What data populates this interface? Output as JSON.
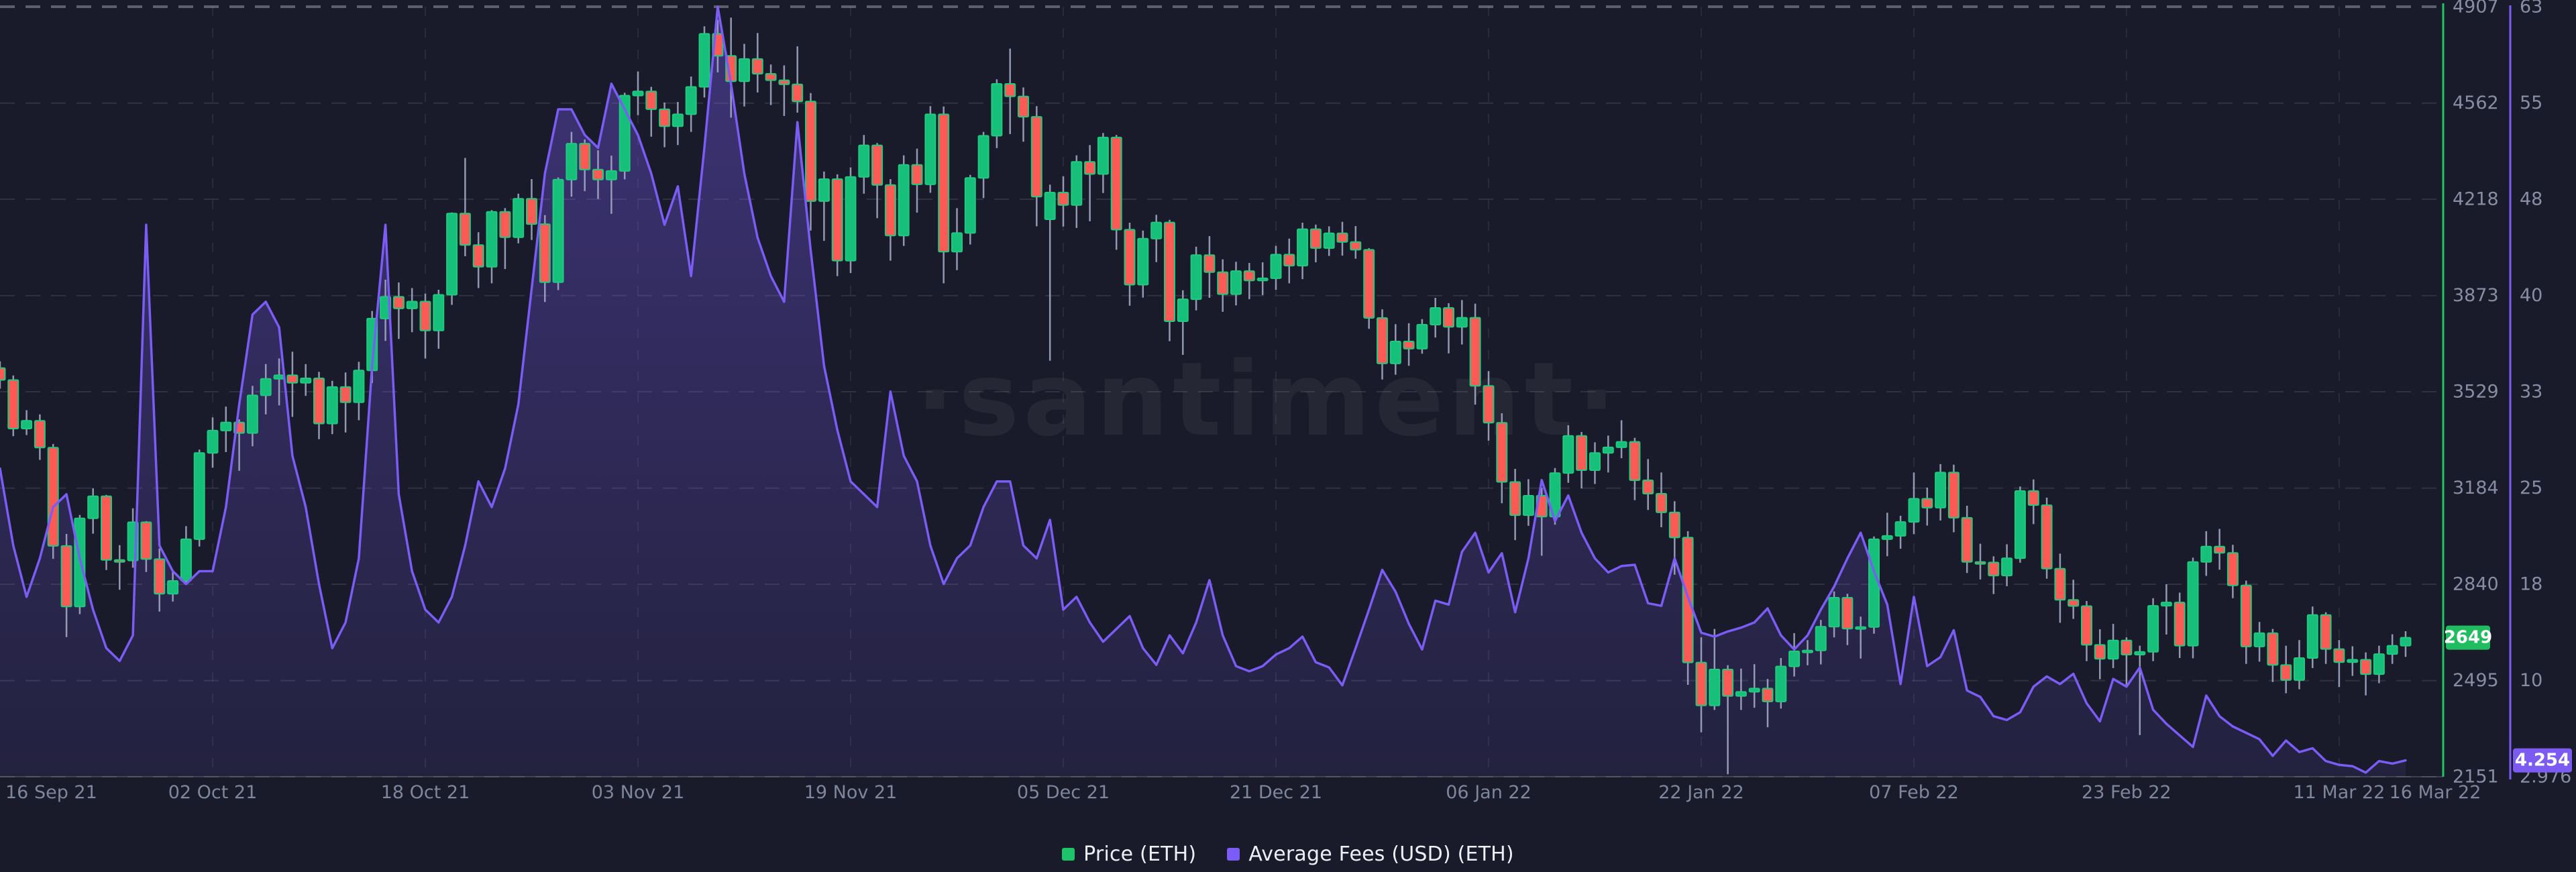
{
  "watermark": "·santiment·",
  "legend": {
    "items": [
      {
        "label": "Price (ETH)",
        "color": "#1ec468"
      },
      {
        "label": "Average Fees (USD) (ETH)",
        "color": "#7c5cf6"
      }
    ]
  },
  "chart_data": {
    "type": "candlestick+area",
    "interval": "1d",
    "start_date": "2021-09-16",
    "end_date": "2022-03-16",
    "x_axis": {
      "grid": true,
      "ticks": [
        {
          "label": "16 Sep 21",
          "day": 0
        },
        {
          "label": "02 Oct 21",
          "day": 16
        },
        {
          "label": "18 Oct 21",
          "day": 32
        },
        {
          "label": "03 Nov 21",
          "day": 48
        },
        {
          "label": "19 Nov 21",
          "day": 64
        },
        {
          "label": "05 Dec 21",
          "day": 80
        },
        {
          "label": "21 Dec 21",
          "day": 96
        },
        {
          "label": "06 Jan 22",
          "day": 112
        },
        {
          "label": "22 Jan 22",
          "day": 128
        },
        {
          "label": "07 Feb 22",
          "day": 144
        },
        {
          "label": "23 Feb 22",
          "day": 160
        },
        {
          "label": "11 Mar 22",
          "day": 176
        },
        {
          "label": "16 Mar 22",
          "day": 181
        }
      ]
    },
    "price_axis": {
      "side": "right",
      "axis_color": "#22c761",
      "tick_labels": [
        "4907",
        "4562",
        "4218",
        "3873",
        "3529",
        "3184",
        "2840",
        "2495",
        "2151"
      ],
      "tick_values": [
        4907,
        4562,
        4218,
        3873,
        3529,
        3184,
        2840,
        2495,
        2151
      ],
      "current_value": 2649,
      "current_label": "2649",
      "badge_color": "#1fbd5f"
    },
    "fee_axis": {
      "side": "far-right",
      "axis_color": "#7c5cf6",
      "tick_labels": [
        "63",
        "55",
        "48",
        "40",
        "33",
        "25",
        "18",
        "10",
        "2.976"
      ],
      "max": 63,
      "min": 2.976,
      "current_value": 4.254,
      "current_label": "4.254",
      "badge_color": "#7c5bf2"
    },
    "series": [
      {
        "name": "Price (ETH)",
        "type": "candlestick",
        "up_color": "#16c07a",
        "down_color": "#fb5a55",
        "border_color": "#1fc97e",
        "wick_color": "#a8aec9",
        "last_close": 2649
      },
      {
        "name": "Average Fees (USD) (ETH)",
        "type": "area",
        "line_color": "#7b5cf5",
        "fill_opacity_top": 0.38,
        "fill_opacity_bottom": 0.1,
        "last_value": 4.254
      }
    ],
    "candles": [
      [
        3614,
        3638,
        3540,
        3571
      ],
      [
        3571,
        3587,
        3370,
        3397
      ],
      [
        3397,
        3463,
        3374,
        3425
      ],
      [
        3425,
        3448,
        3285,
        3329
      ],
      [
        3329,
        3342,
        2931,
        2977
      ],
      [
        2977,
        3020,
        2651,
        2760
      ],
      [
        2760,
        3088,
        2733,
        3076
      ],
      [
        3076,
        3184,
        3021,
        3155
      ],
      [
        3155,
        3160,
        2891,
        2927
      ],
      [
        2927,
        2980,
        2820,
        2925
      ],
      [
        2925,
        3112,
        2899,
        3062
      ],
      [
        3062,
        3066,
        2884,
        2930
      ],
      [
        2930,
        2968,
        2742,
        2806
      ],
      [
        2806,
        2888,
        2778,
        2852
      ],
      [
        2852,
        3048,
        2838,
        3001
      ],
      [
        3001,
        3322,
        2975,
        3310
      ],
      [
        3310,
        3437,
        3257,
        3390
      ],
      [
        3390,
        3476,
        3313,
        3419
      ],
      [
        3419,
        3430,
        3246,
        3381
      ],
      [
        3381,
        3550,
        3334,
        3516
      ],
      [
        3516,
        3628,
        3448,
        3575
      ],
      [
        3575,
        3648,
        3480,
        3588
      ],
      [
        3588,
        3672,
        3439,
        3561
      ],
      [
        3561,
        3628,
        3514,
        3577
      ],
      [
        3577,
        3600,
        3359,
        3415
      ],
      [
        3415,
        3568,
        3377,
        3546
      ],
      [
        3546,
        3598,
        3383,
        3491
      ],
      [
        3491,
        3636,
        3427,
        3605
      ],
      [
        3605,
        3818,
        3560,
        3791
      ],
      [
        3791,
        3930,
        3711,
        3869
      ],
      [
        3869,
        3920,
        3718,
        3827
      ],
      [
        3827,
        3900,
        3742,
        3852
      ],
      [
        3852,
        3880,
        3648,
        3748
      ],
      [
        3748,
        3894,
        3683,
        3876
      ],
      [
        3876,
        4171,
        3840,
        4167
      ],
      [
        4167,
        4366,
        4014,
        4054
      ],
      [
        4054,
        4100,
        3900,
        3976
      ],
      [
        3976,
        4179,
        3917,
        4173
      ],
      [
        4173,
        4186,
        3968,
        4082
      ],
      [
        4082,
        4238,
        4060,
        4220
      ],
      [
        4220,
        4290,
        4072,
        4129
      ],
      [
        4129,
        4161,
        3850,
        3921
      ],
      [
        3921,
        4296,
        3893,
        4288
      ],
      [
        4288,
        4459,
        4227,
        4417
      ],
      [
        4417,
        4432,
        4247,
        4324
      ],
      [
        4324,
        4393,
        4219,
        4288
      ],
      [
        4288,
        4374,
        4166,
        4319
      ],
      [
        4319,
        4599,
        4289,
        4589
      ],
      [
        4589,
        4675,
        4519,
        4604
      ],
      [
        4604,
        4620,
        4442,
        4540
      ],
      [
        4540,
        4564,
        4404,
        4479
      ],
      [
        4479,
        4566,
        4412,
        4522
      ],
      [
        4522,
        4657,
        4459,
        4620
      ],
      [
        4620,
        4837,
        4582,
        4810
      ],
      [
        4810,
        4860,
        4672,
        4731
      ],
      [
        4731,
        4868,
        4510,
        4640
      ],
      [
        4640,
        4774,
        4550,
        4720
      ],
      [
        4720,
        4813,
        4600,
        4667
      ],
      [
        4667,
        4700,
        4555,
        4644
      ],
      [
        4644,
        4697,
        4516,
        4629
      ],
      [
        4629,
        4765,
        4528,
        4568
      ],
      [
        4568,
        4598,
        4106,
        4211
      ],
      [
        4211,
        4317,
        4069,
        4290
      ],
      [
        4290,
        4307,
        3943,
        3998
      ],
      [
        3998,
        4332,
        3954,
        4298
      ],
      [
        4298,
        4448,
        4238,
        4411
      ],
      [
        4411,
        4419,
        4150,
        4269
      ],
      [
        4269,
        4290,
        3998,
        4088
      ],
      [
        4088,
        4375,
        4051,
        4341
      ],
      [
        4341,
        4399,
        4170,
        4271
      ],
      [
        4271,
        4551,
        4241,
        4522
      ],
      [
        4522,
        4550,
        3917,
        4030
      ],
      [
        4030,
        4186,
        3964,
        4097
      ],
      [
        4097,
        4305,
        4056,
        4294
      ],
      [
        4294,
        4459,
        4222,
        4445
      ],
      [
        4445,
        4647,
        4401,
        4631
      ],
      [
        4631,
        4757,
        4451,
        4586
      ],
      [
        4586,
        4618,
        4424,
        4513
      ],
      [
        4513,
        4551,
        4121,
        4227
      ],
      [
        4146,
        4270,
        3640,
        4242
      ],
      [
        4242,
        4300,
        4120,
        4197
      ],
      [
        4197,
        4375,
        4115,
        4352
      ],
      [
        4352,
        4412,
        4139,
        4308
      ],
      [
        4308,
        4455,
        4240,
        4439
      ],
      [
        4439,
        4448,
        4037,
        4109
      ],
      [
        4109,
        4134,
        3837,
        3912
      ],
      [
        3912,
        4106,
        3866,
        4077
      ],
      [
        4077,
        4162,
        3993,
        4135
      ],
      [
        4135,
        4144,
        3710,
        3781
      ],
      [
        3781,
        3892,
        3661,
        3860
      ],
      [
        3860,
        4048,
        3820,
        4018
      ],
      [
        4018,
        4086,
        3865,
        3957
      ],
      [
        3957,
        4003,
        3815,
        3878
      ],
      [
        3878,
        3994,
        3838,
        3961
      ],
      [
        3961,
        3990,
        3860,
        3927
      ],
      [
        3927,
        3992,
        3875,
        3935
      ],
      [
        3935,
        4051,
        3894,
        4020
      ],
      [
        4020,
        4077,
        3917,
        3980
      ],
      [
        3980,
        4134,
        3932,
        4111
      ],
      [
        4111,
        4127,
        3992,
        4043
      ],
      [
        4043,
        4121,
        4015,
        4096
      ],
      [
        4096,
        4137,
        4016,
        4065
      ],
      [
        4065,
        4122,
        4005,
        4037
      ],
      [
        4037,
        4043,
        3754,
        3793
      ],
      [
        3793,
        3824,
        3573,
        3630
      ],
      [
        3630,
        3771,
        3590,
        3709
      ],
      [
        3709,
        3774,
        3622,
        3683
      ],
      [
        3683,
        3789,
        3665,
        3769
      ],
      [
        3769,
        3865,
        3723,
        3829
      ],
      [
        3829,
        3846,
        3666,
        3761
      ],
      [
        3761,
        3857,
        3698,
        3794
      ],
      [
        3794,
        3844,
        3483,
        3550
      ],
      [
        3550,
        3603,
        3354,
        3418
      ],
      [
        3418,
        3452,
        3130,
        3206
      ],
      [
        3206,
        3253,
        2998,
        3087
      ],
      [
        3087,
        3216,
        3049,
        3157
      ],
      [
        3157,
        3185,
        2942,
        3082
      ],
      [
        3082,
        3256,
        3053,
        3238
      ],
      [
        3238,
        3409,
        3203,
        3371
      ],
      [
        3371,
        3385,
        3183,
        3248
      ],
      [
        3248,
        3348,
        3199,
        3310
      ],
      [
        3310,
        3372,
        3240,
        3330
      ],
      [
        3330,
        3427,
        3291,
        3350
      ],
      [
        3350,
        3364,
        3141,
        3212
      ],
      [
        3212,
        3288,
        3106,
        3164
      ],
      [
        3164,
        3240,
        3044,
        3097
      ],
      [
        3097,
        3137,
        2874,
        3007
      ],
      [
        3007,
        3030,
        2480,
        2560
      ],
      [
        2560,
        2650,
        2310,
        2406
      ],
      [
        2406,
        2680,
        2390,
        2535
      ],
      [
        2535,
        2550,
        2160,
        2440
      ],
      [
        2440,
        2538,
        2390,
        2455
      ],
      [
        2455,
        2554,
        2398,
        2467
      ],
      [
        2467,
        2501,
        2328,
        2420
      ],
      [
        2420,
        2576,
        2395,
        2546
      ],
      [
        2546,
        2665,
        2510,
        2600
      ],
      [
        2600,
        2640,
        2550,
        2603
      ],
      [
        2603,
        2712,
        2553,
        2688
      ],
      [
        2688,
        2814,
        2650,
        2792
      ],
      [
        2792,
        2806,
        2622,
        2681
      ],
      [
        2681,
        2724,
        2574,
        2687
      ],
      [
        2687,
        3011,
        2663,
        3001
      ],
      [
        3001,
        3096,
        2940,
        3013
      ],
      [
        3013,
        3085,
        2967,
        3063
      ],
      [
        3063,
        3240,
        3019,
        3146
      ],
      [
        3146,
        3186,
        3050,
        3114
      ],
      [
        3114,
        3270,
        3068,
        3240
      ],
      [
        3240,
        3268,
        3026,
        3078
      ],
      [
        3078,
        3121,
        2880,
        2920
      ],
      [
        2920,
        2985,
        2857,
        2918
      ],
      [
        2918,
        2940,
        2805,
        2871
      ],
      [
        2871,
        2983,
        2833,
        2933
      ],
      [
        2933,
        3190,
        2917,
        3174
      ],
      [
        3174,
        3215,
        3055,
        3123
      ],
      [
        3123,
        3150,
        2860,
        2896
      ],
      [
        2896,
        2950,
        2702,
        2784
      ],
      [
        2784,
        2856,
        2716,
        2762
      ],
      [
        2762,
        2780,
        2565,
        2623
      ],
      [
        2623,
        2679,
        2500,
        2573
      ],
      [
        2573,
        2698,
        2540,
        2639
      ],
      [
        2639,
        2650,
        2477,
        2588
      ],
      [
        2588,
        2620,
        2300,
        2598
      ],
      [
        2598,
        2790,
        2565,
        2763
      ],
      [
        2763,
        2840,
        2660,
        2775
      ],
      [
        2775,
        2810,
        2576,
        2620
      ],
      [
        2620,
        2935,
        2575,
        2920
      ],
      [
        2920,
        3030,
        2870,
        2975
      ],
      [
        2975,
        3038,
        2892,
        2952
      ],
      [
        2952,
        2981,
        2790,
        2836
      ],
      [
        2836,
        2853,
        2555,
        2617
      ],
      [
        2617,
        2705,
        2563,
        2665
      ],
      [
        2665,
        2680,
        2490,
        2551
      ],
      [
        2551,
        2620,
        2450,
        2497
      ],
      [
        2497,
        2640,
        2464,
        2576
      ],
      [
        2576,
        2760,
        2540,
        2730
      ],
      [
        2730,
        2740,
        2555,
        2608
      ],
      [
        2608,
        2640,
        2472,
        2561
      ],
      [
        2561,
        2618,
        2512,
        2570
      ],
      [
        2570,
        2596,
        2442,
        2518
      ],
      [
        2518,
        2620,
        2486,
        2590
      ],
      [
        2590,
        2661,
        2555,
        2620
      ],
      [
        2620,
        2672,
        2580,
        2649
      ]
    ],
    "fees": [
      27,
      21,
      17,
      20,
      24,
      25,
      20,
      16,
      13,
      12,
      14,
      46,
      21,
      19,
      18,
      19,
      19,
      24,
      32,
      39,
      40,
      38,
      28,
      24,
      18,
      13,
      15,
      20,
      35,
      46,
      25,
      19,
      16,
      15,
      17,
      21,
      26,
      24,
      27,
      32,
      41,
      50,
      55,
      55,
      53,
      52,
      57,
      55,
      53,
      50,
      46,
      49,
      42,
      52,
      63,
      57,
      50,
      45,
      42,
      40,
      54,
      44,
      35,
      30,
      26,
      25,
      24,
      33,
      28,
      26,
      21,
      18,
      20,
      21,
      24,
      26,
      26,
      21,
      20,
      23,
      16,
      17,
      15,
      13.5,
      14.5,
      15.5,
      13,
      11.7,
      14,
      12.6,
      15,
      18.3,
      14,
      11.6,
      11.2,
      11.6,
      12.5,
      13,
      13.9,
      11.9,
      11.5,
      10.1,
      13,
      16,
      19.1,
      17.4,
      14.9,
      12.9,
      16.7,
      16.4,
      20.5,
      22,
      18.9,
      20.4,
      15.8,
      20,
      26.1,
      22.9,
      24.9,
      22,
      20,
      18.9,
      19.4,
      19.5,
      16.5,
      16.3,
      20,
      17,
      14.2,
      13.9,
      14.3,
      14.6,
      15,
      16.1,
      14,
      12.9,
      14,
      16,
      17.8,
      20,
      22,
      19,
      16.4,
      10.2,
      17,
      11.6,
      12.3,
      14.4,
      9.7,
      9.2,
      7.7,
      7.4,
      8,
      10,
      10.8,
      10.2,
      11,
      8.7,
      7.3,
      10.6,
      10,
      11.5,
      8.2,
      7.1,
      6.2,
      5.3,
      9.3,
      7.7,
      6.9,
      6.4,
      5.9,
      4.6,
      5.8,
      4.9,
      5.2,
      4.2,
      3.9,
      3.8,
      3.3,
      4.2,
      4.0,
      4.254
    ]
  },
  "colors": {
    "background": "#191b2a",
    "grid_h": "rgba(255,255,255,0.10)",
    "grid_v": "rgba(255,255,255,0.07)",
    "grid_top": "rgba(255,255,255,0.30)",
    "axis_baseline": "rgba(255,255,255,0.16)",
    "tick_text": "#878da3",
    "date_text": "#7f859b",
    "badge_text": "#ffffff",
    "watermark_opacity": 0.05
  }
}
